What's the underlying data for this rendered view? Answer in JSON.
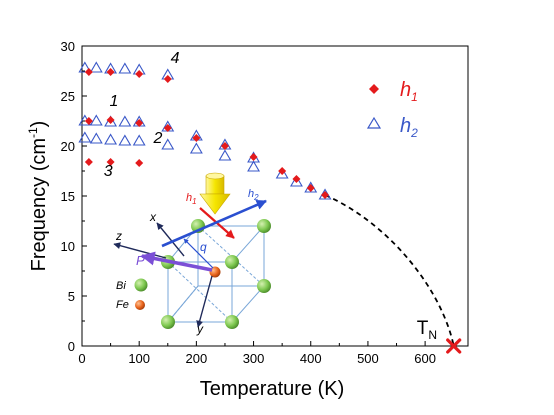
{
  "chart_data": {
    "type": "scatter",
    "xlabel": "Temperature (K)",
    "ylabel": "Frequency (cm",
    "ylabel_sup": "-1",
    "ylabel_end": ")",
    "xlim": [
      0,
      675
    ],
    "ylim": [
      0,
      30
    ],
    "x_ticks": [
      0,
      100,
      200,
      300,
      400,
      500,
      600
    ],
    "y_ticks": [
      0,
      5,
      10,
      15,
      20,
      25,
      30
    ],
    "grid": false,
    "legend_position": "top-right",
    "colors": {
      "h1": "#e41a1c",
      "h2": "#3a58c8",
      "fit": "#000000"
    },
    "series": [
      {
        "name": "h",
        "sub": "1",
        "marker": "diamond-filled",
        "points": [
          [
            12,
            27.4
          ],
          [
            50,
            27.4
          ],
          [
            100,
            27.2
          ],
          [
            150,
            26.7
          ],
          [
            12,
            22.5
          ],
          [
            50,
            22.6
          ],
          [
            100,
            22.3
          ],
          [
            150,
            21.8
          ],
          [
            12,
            18.4
          ],
          [
            50,
            18.4
          ],
          [
            100,
            18.3
          ],
          [
            200,
            20.8
          ],
          [
            250,
            20.0
          ],
          [
            300,
            18.9
          ],
          [
            350,
            17.5
          ],
          [
            375,
            16.7
          ],
          [
            400,
            15.8
          ],
          [
            425,
            15.1
          ]
        ]
      },
      {
        "name": "h",
        "sub": "2",
        "marker": "triangle-open",
        "points": [
          [
            5,
            27.8
          ],
          [
            25,
            27.8
          ],
          [
            50,
            27.7
          ],
          [
            75,
            27.7
          ],
          [
            100,
            27.6
          ],
          [
            150,
            27.1
          ],
          [
            5,
            22.5
          ],
          [
            25,
            22.5
          ],
          [
            50,
            22.4
          ],
          [
            75,
            22.4
          ],
          [
            100,
            22.4
          ],
          [
            150,
            21.9
          ],
          [
            5,
            20.8
          ],
          [
            25,
            20.7
          ],
          [
            50,
            20.6
          ],
          [
            75,
            20.5
          ],
          [
            100,
            20.5
          ],
          [
            150,
            20.1
          ],
          [
            200,
            21.0
          ],
          [
            200,
            19.7
          ],
          [
            250,
            20.1
          ],
          [
            250,
            19.0
          ],
          [
            300,
            18.8
          ],
          [
            300,
            17.9
          ],
          [
            350,
            17.2
          ],
          [
            375,
            16.4
          ],
          [
            400,
            15.8
          ],
          [
            425,
            15.1
          ]
        ]
      }
    ],
    "fit_curve": {
      "style": "dashed",
      "from": [
        425,
        15.1
      ],
      "to": [
        650,
        0
      ]
    },
    "neel_point": {
      "x": 650,
      "y": 0,
      "marker": "x",
      "label": "T",
      "sub": "N"
    },
    "mode_labels": [
      {
        "text": "4",
        "x": 155,
        "y": 28.3
      },
      {
        "text": "1",
        "x": 48,
        "y": 24.0
      },
      {
        "text": "2",
        "x": 125,
        "y": 20.3
      },
      {
        "text": "3",
        "x": 38,
        "y": 17.0
      }
    ]
  },
  "inset": {
    "labels": {
      "h1": "h",
      "h1_sub": "1",
      "h2": "h",
      "h2_sub": "2",
      "x": "x",
      "y": "y",
      "z": "z",
      "q": "q",
      "P": "P",
      "bi": "Bi",
      "fe": "Fe"
    },
    "colors": {
      "bi_atom": "#7ec850",
      "fe_atom": "#e8641c",
      "cube_edge": "#7aa7d8",
      "h1_arrow": "#e41a1c",
      "h2_arrow": "#2a4fd0",
      "p_arrow": "#7b4fd6",
      "axis_arrow": "#1f2a5a",
      "light_beam": "#f5e600"
    },
    "icons": [
      "light-beam-arrow-icon"
    ]
  }
}
